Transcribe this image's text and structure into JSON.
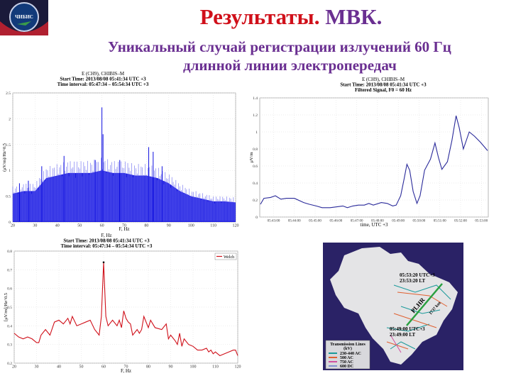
{
  "slide": {
    "title_part1": "Результаты.",
    "title_part2": "МВК.",
    "subtitle_line1": "Уникальный случай регистрации излучений 60 Гц",
    "subtitle_line2": "длинной линии электропередач",
    "logo_text": "ЧИБИС"
  },
  "chart_data": [
    {
      "id": "spectrum",
      "type": "area",
      "title_lines": [
        "E (CH9), CHIBIS–M",
        "Start Time: 2013/08/08 05:41:34 UTC +3",
        "Time interval: 05:47:34 – 05:54:34 UTC +3"
      ],
      "xlabel": "F, Hz",
      "ylabel": "(μV/m)/Hz^0.5",
      "xlim": [
        20,
        120
      ],
      "ylim": [
        0,
        2.5
      ],
      "xticks": [
        20,
        30,
        40,
        50,
        60,
        70,
        80,
        90,
        100,
        110,
        120
      ],
      "yticks": [
        0,
        0.5,
        1,
        1.5,
        2,
        2.5
      ],
      "grid": true,
      "color": "#1010e0",
      "envelope": {
        "x": [
          20,
          25,
          30,
          35,
          40,
          45,
          50,
          55,
          60,
          65,
          70,
          75,
          80,
          85,
          90,
          95,
          100,
          105,
          110,
          115,
          120
        ],
        "y": [
          0.55,
          0.6,
          0.6,
          0.85,
          0.9,
          0.95,
          0.95,
          0.95,
          1.0,
          0.95,
          0.95,
          0.9,
          0.9,
          0.85,
          0.75,
          0.6,
          0.5,
          0.45,
          0.4,
          0.4,
          0.38
        ]
      },
      "peaks": [
        [
          60,
          2.22
        ],
        [
          60.5,
          1.7
        ],
        [
          81,
          1.45
        ],
        [
          83,
          1.36
        ],
        [
          43,
          1.28
        ],
        [
          33,
          1.08
        ],
        [
          68,
          1.2
        ],
        [
          57,
          1.2
        ],
        [
          87,
          1.08
        ],
        [
          23,
          0.75
        ],
        [
          27,
          0.8
        ]
      ]
    },
    {
      "id": "filtered",
      "type": "line",
      "title_lines": [
        "E (CH9), CHIBIS–M",
        "Start Time: 2013/08/08 05:41:34 UTC +3",
        "Filtered Signal, F0 = 60 Hz"
      ],
      "xlabel": "time, UTC +3",
      "ylabel": "μV/m",
      "xlim": [
        "05:42:20",
        "05:53:20"
      ],
      "ylim": [
        0,
        1.4
      ],
      "xticks": [
        "05:43:00",
        "05:44:00",
        "05:45:00",
        "05:46:00",
        "05:47:00",
        "05:48:00",
        "05:49:00",
        "05:50:00",
        "05:51:00",
        "05:52:00",
        "05:53:00"
      ],
      "yticks": [
        0,
        0.2,
        0.4,
        0.6,
        0.8,
        1,
        1.2,
        1.4
      ],
      "grid": true,
      "color": "#2a2a9a",
      "x": [
        "05:42:22",
        "05:42:32",
        "05:42:51",
        "05:43:05",
        "05:43:21",
        "05:43:37",
        "05:44:00",
        "05:44:27",
        "05:44:43",
        "05:45:03",
        "05:45:20",
        "05:45:43",
        "05:46:03",
        "05:46:20",
        "05:46:33",
        "05:46:49",
        "05:47:05",
        "05:47:22",
        "05:47:35",
        "05:47:48",
        "05:48:11",
        "05:48:28",
        "05:48:44",
        "05:48:54",
        "05:49:07",
        "05:49:17",
        "05:49:25",
        "05:49:33",
        "05:49:43",
        "05:49:54",
        "05:50:03",
        "05:50:16",
        "05:50:33",
        "05:50:46",
        "05:50:56",
        "05:51:06",
        "05:51:22",
        "05:51:35",
        "05:51:47",
        "05:51:56",
        "05:52:08",
        "05:52:25",
        "05:52:40",
        "05:52:57",
        "05:53:18"
      ],
      "y": [
        0.15,
        0.22,
        0.23,
        0.25,
        0.21,
        0.22,
        0.22,
        0.17,
        0.15,
        0.13,
        0.11,
        0.11,
        0.12,
        0.13,
        0.11,
        0.13,
        0.14,
        0.14,
        0.16,
        0.14,
        0.17,
        0.16,
        0.13,
        0.14,
        0.25,
        0.45,
        0.62,
        0.55,
        0.3,
        0.16,
        0.25,
        0.55,
        0.68,
        0.87,
        0.7,
        0.56,
        0.65,
        0.9,
        1.19,
        1.05,
        0.8,
        1.0,
        0.95,
        0.88,
        0.78
      ]
    },
    {
      "id": "welch",
      "type": "line",
      "title_lines": [
        "F, Hz",
        "Start Time: 2013/08/08 05:41:34 UTC +3",
        "Time interval: 05:47:34 – 05:54:34 UTC +3"
      ],
      "xlabel": "F, Hz",
      "ylabel": "[μV/m]/Hz^0.5",
      "legend": [
        "Welch"
      ],
      "legend_position": "top-right",
      "xlim": [
        20,
        120
      ],
      "ylim": [
        0.2,
        0.8
      ],
      "xticks": [
        20,
        30,
        40,
        50,
        60,
        70,
        80,
        90,
        100,
        110,
        120
      ],
      "yticks": [
        0.2,
        0.3,
        0.4,
        0.5,
        0.6,
        0.7,
        0.8
      ],
      "grid": true,
      "color": "#d0101a",
      "marker_point": [
        60,
        0.74
      ],
      "x": [
        20,
        22,
        24,
        26,
        28,
        30,
        31,
        32,
        34,
        36,
        38,
        40,
        42,
        44,
        45,
        46,
        48,
        50,
        52,
        54,
        56,
        58,
        59,
        60,
        61,
        62,
        64,
        66,
        67,
        68,
        69,
        70,
        71,
        72,
        73,
        75,
        76,
        77,
        78,
        80,
        81,
        83,
        86,
        88,
        89,
        90,
        92,
        93,
        94,
        95,
        96,
        98,
        100,
        102,
        104,
        106,
        107,
        108,
        109,
        110,
        112,
        114,
        116,
        118,
        119,
        120
      ],
      "y": [
        0.36,
        0.34,
        0.33,
        0.34,
        0.33,
        0.31,
        0.31,
        0.35,
        0.38,
        0.35,
        0.42,
        0.43,
        0.41,
        0.44,
        0.41,
        0.45,
        0.4,
        0.41,
        0.42,
        0.43,
        0.38,
        0.35,
        0.45,
        0.74,
        0.45,
        0.4,
        0.43,
        0.4,
        0.43,
        0.39,
        0.48,
        0.44,
        0.42,
        0.41,
        0.35,
        0.38,
        0.36,
        0.38,
        0.45,
        0.39,
        0.43,
        0.39,
        0.38,
        0.41,
        0.33,
        0.35,
        0.32,
        0.3,
        0.36,
        0.29,
        0.33,
        0.3,
        0.29,
        0.27,
        0.27,
        0.28,
        0.26,
        0.27,
        0.25,
        0.26,
        0.24,
        0.25,
        0.26,
        0.27,
        0.27,
        0.24
      ]
    }
  ],
  "map": {
    "end_time_utc": "05:53:20 UTC+3",
    "end_time_lt": "23:53:20 LT",
    "start_time_utc": "05:49:00 UTC+3",
    "start_time_lt": "23:49:00 LT",
    "track_label": "PLHR",
    "distance": "1737 km",
    "legend_title": "Transmission Lines",
    "legend_unit": "(kV)",
    "legend": [
      {
        "label": "230-440 AC",
        "color": "#1a9a9a"
      },
      {
        "label": "500 AC",
        "color": "#e06030"
      },
      {
        "label": "750 AC",
        "color": "#d050a0"
      },
      {
        "label": "600 DC",
        "color": "#8090d0"
      }
    ],
    "background": "#2a2266",
    "land": "#e4e4e6"
  }
}
